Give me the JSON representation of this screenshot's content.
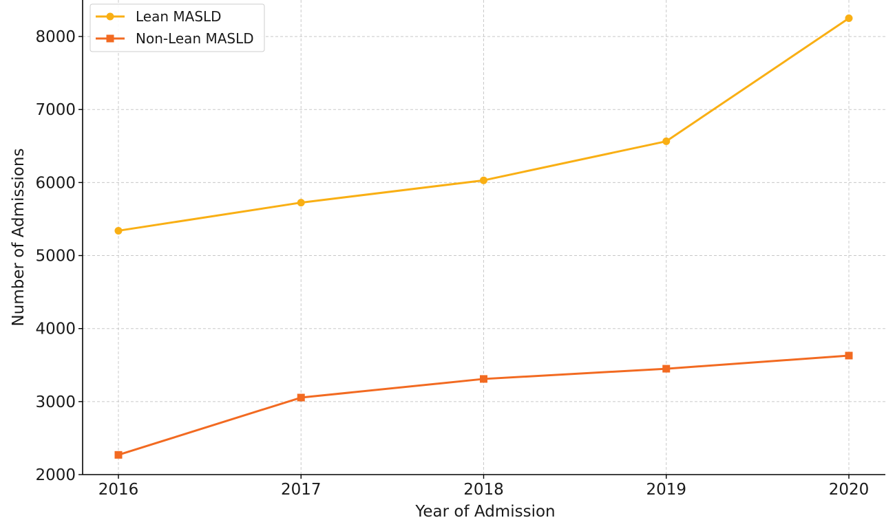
{
  "chart_data": {
    "type": "line",
    "title": "",
    "xlabel": "Year of Admission",
    "ylabel": "Number of Admissions",
    "x": [
      2016,
      2017,
      2018,
      2019,
      2020
    ],
    "xticks": [
      "2016",
      "2017",
      "2018",
      "2019",
      "2020"
    ],
    "ylim": [
      2000,
      8500
    ],
    "yticks": [
      2000,
      3000,
      4000,
      5000,
      6000,
      7000,
      8000
    ],
    "grid": true,
    "legend_position": "top-left",
    "series": [
      {
        "name": "Lean MASLD",
        "marker": "circle",
        "color": "#F9AF14",
        "values": [
          5340,
          5725,
          6030,
          6565,
          8250
        ]
      },
      {
        "name": "Non-Lean MASLD",
        "marker": "square",
        "color": "#F26A21",
        "values": [
          2270,
          3055,
          3310,
          3450,
          3630
        ]
      }
    ]
  }
}
